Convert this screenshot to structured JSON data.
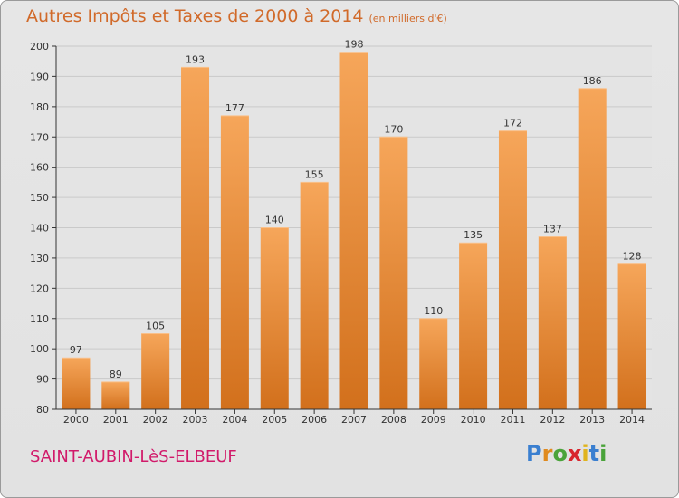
{
  "header": {
    "title": "Autres Impôts et Taxes de 2000 à 2014",
    "unit": "(en milliers d'€)"
  },
  "footer": {
    "commune": "SAINT-AUBIN-LèS-ELBEUF",
    "logo_letters": [
      "P",
      "r",
      "o",
      "x",
      "i",
      "t",
      "i"
    ],
    "logo_colors": [
      "#3a7fd0",
      "#e08a1e",
      "#4aa33a",
      "#d8262e",
      "#e0b41e",
      "#3a7fd0",
      "#4aa33a"
    ]
  },
  "colors": {
    "bar_top": "#f6a65a",
    "bar_bottom": "#d2701c",
    "accent": "#d16a2a",
    "brand": "#d11a6a"
  },
  "chart_data": {
    "type": "bar",
    "title": "Autres Impôts et Taxes de 2000 à 2014",
    "categories": [
      "2000",
      "2001",
      "2002",
      "2003",
      "2004",
      "2005",
      "2006",
      "2007",
      "2008",
      "2009",
      "2010",
      "2011",
      "2012",
      "2013",
      "2014"
    ],
    "values": [
      97,
      89,
      105,
      193,
      177,
      140,
      155,
      198,
      170,
      110,
      135,
      172,
      137,
      186,
      128
    ],
    "ylim": [
      80,
      200
    ],
    "yticks": [
      80,
      90,
      100,
      110,
      120,
      130,
      140,
      150,
      160,
      170,
      180,
      190,
      200
    ],
    "grid": true,
    "xlabel": "",
    "ylabel": ""
  }
}
